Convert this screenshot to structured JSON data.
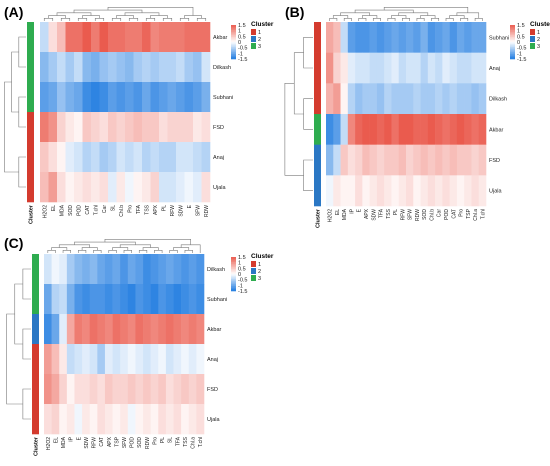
{
  "legend": {
    "title": "Cluster",
    "scale_labels": [
      "1.5",
      "1",
      "0.5",
      "0",
      "-0.5",
      "-1",
      "-1.5"
    ],
    "cluster_labels": [
      "1",
      "2",
      "3"
    ]
  },
  "colors": {
    "cluster_1": "#d43b2e",
    "cluster_2": "#2a77c4",
    "cluster_3": "#2eac4f",
    "low": "#1f7be0",
    "mid": "#ffffff",
    "high": "#ea5b4e",
    "dendrogram": "#7a7a7a"
  },
  "chart_data": [
    {
      "type": "heatmap",
      "panel_label": "(A)",
      "rows": [
        "Akbar",
        "Dilkash",
        "Subhani",
        "FSD",
        "Anaj",
        "Ujala"
      ],
      "row_clusters": [
        3,
        3,
        3,
        1,
        1,
        1
      ],
      "cluster_bar_label": "Cluster",
      "columns": [
        "H2O2",
        "EL",
        "MDA",
        "SOD",
        "POD",
        "CAT",
        "T.chl",
        "Car",
        "SL",
        "Chl.b",
        "Pro",
        "TFA",
        "TSS",
        "APX",
        "PL",
        "RFW",
        "SDW",
        "E",
        "SFW",
        "RDW"
      ],
      "values": [
        [
          -0.4,
          0.3,
          0.6,
          1.3,
          1.3,
          1.5,
          1.2,
          1.5,
          1.3,
          1.3,
          1.2,
          1.2,
          1.4,
          1.1,
          1.2,
          1.2,
          1.2,
          1.3,
          1.3,
          1.3
        ],
        [
          -0.8,
          -0.6,
          -0.4,
          -0.6,
          -0.4,
          -0.8,
          -0.9,
          -0.7,
          -0.6,
          -0.7,
          -0.8,
          -0.6,
          -0.5,
          -0.6,
          -0.5,
          -0.5,
          -0.4,
          -0.6,
          -0.7,
          -0.3
        ],
        [
          -1.1,
          -1.0,
          -0.7,
          -0.9,
          -1.0,
          -1.3,
          -1.4,
          -1.3,
          -1.1,
          -1.2,
          -1.1,
          -1.2,
          -1.0,
          -1.2,
          -1.1,
          -1.0,
          -1.1,
          -1.2,
          -1.1,
          -0.9
        ],
        [
          1.2,
          1.0,
          0.4,
          0.2,
          0.1,
          0.5,
          0.4,
          0.3,
          0.5,
          0.4,
          0.5,
          0.6,
          0.5,
          0.5,
          0.3,
          0.4,
          0.4,
          0.4,
          0.2,
          0.3
        ],
        [
          0.5,
          0.3,
          0.1,
          -0.2,
          -0.3,
          -0.5,
          -0.4,
          -0.6,
          -0.5,
          -0.3,
          -0.4,
          -0.3,
          -0.5,
          -0.4,
          -0.5,
          -0.5,
          -0.3,
          -0.3,
          -0.4,
          -0.5
        ],
        [
          0.6,
          0.9,
          0.3,
          0.1,
          0.2,
          0.3,
          0.2,
          0.3,
          -0.2,
          0.2,
          -0.1,
          0.1,
          0.2,
          0.4,
          -0.3,
          -0.3,
          -0.2,
          -0.1,
          -0.2,
          0.3
        ]
      ]
    },
    {
      "type": "heatmap",
      "panel_label": "(B)",
      "rows": [
        "Subhani",
        "Anaj",
        "Dilkash",
        "Akbar",
        "FSD",
        "Ujala"
      ],
      "row_clusters": [
        1,
        1,
        1,
        3,
        2,
        2
      ],
      "cluster_bar_label": "Cluster",
      "columns": [
        "H2O2",
        "EL",
        "MDA",
        "IP",
        "E",
        "APX",
        "SDW",
        "TFA",
        "TSS",
        "PL",
        "RFW",
        "SFW",
        "RDW",
        "SOD",
        "Chl.b",
        "Car",
        "POD",
        "CAT",
        "Pro",
        "TSP",
        "Chl.a",
        "T.chl"
      ],
      "values": [
        [
          0.8,
          0.6,
          -0.4,
          -1.1,
          -1.2,
          -1.2,
          -1.1,
          -1.2,
          -1.1,
          -1.0,
          -1.1,
          -1.0,
          -1.1,
          -0.9,
          -1.2,
          -1.1,
          -1.0,
          -1.2,
          -1.0,
          -1.1,
          -1.0,
          -1.0
        ],
        [
          1.0,
          0.4,
          0.2,
          -0.2,
          -0.3,
          -0.3,
          -0.4,
          -0.4,
          -0.3,
          -0.2,
          -0.4,
          -0.3,
          -0.3,
          -0.5,
          -0.3,
          -0.4,
          -0.2,
          -0.3,
          -0.4,
          -0.4,
          -0.3,
          -0.3
        ],
        [
          0.7,
          0.9,
          0.1,
          -0.5,
          -0.7,
          -0.6,
          -0.6,
          -0.7,
          -0.5,
          -0.6,
          -0.6,
          -0.6,
          -0.5,
          -0.6,
          -0.6,
          -0.5,
          -0.6,
          -0.5,
          -0.6,
          -0.6,
          -0.7,
          -0.6
        ],
        [
          -1.3,
          -1.1,
          -0.4,
          1.1,
          1.4,
          1.5,
          1.5,
          1.4,
          1.5,
          1.3,
          1.5,
          1.5,
          1.4,
          1.4,
          1.5,
          1.4,
          1.3,
          1.4,
          1.5,
          1.4,
          1.3,
          1.4
        ],
        [
          -0.8,
          -0.4,
          0.5,
          0.3,
          0.4,
          0.6,
          0.5,
          0.4,
          0.5,
          0.5,
          0.6,
          0.4,
          0.5,
          0.6,
          0.5,
          0.6,
          0.5,
          0.6,
          0.5,
          0.5,
          0.4,
          0.5
        ],
        [
          -0.1,
          0.2,
          0.1,
          0.1,
          0.3,
          0.1,
          0.2,
          0.3,
          0.2,
          0.1,
          0.2,
          0.3,
          0.1,
          0.2,
          0.3,
          0.2,
          0.3,
          0.2,
          0.1,
          0.2,
          0.3,
          0.2
        ]
      ]
    },
    {
      "type": "heatmap",
      "panel_label": "(C)",
      "rows": [
        "Dilkash",
        "Subhani",
        "Akbar",
        "Anaj",
        "FSD",
        "Ujala"
      ],
      "row_clusters": [
        3,
        3,
        2,
        1,
        1,
        1
      ],
      "cluster_bar_label": "Cluster",
      "columns": [
        "H2O2",
        "EL",
        "MDA",
        "IP",
        "E",
        "SDW",
        "RFW",
        "CAT",
        "APX",
        "TSP",
        "SFW",
        "POD",
        "SOD",
        "RDW",
        "Pro",
        "PL",
        "SL",
        "TFA",
        "TSS",
        "Chl.a",
        "T.chl"
      ],
      "values": [
        [
          -0.3,
          -0.1,
          -0.2,
          -0.6,
          -0.8,
          -0.9,
          -0.8,
          -1.0,
          -1.1,
          -1.0,
          -1.2,
          -1.0,
          -1.1,
          -1.3,
          -1.2,
          -1.1,
          -1.0,
          -1.1,
          -1.2,
          -1.1,
          -1.2
        ],
        [
          -1.0,
          -0.5,
          -0.4,
          -0.9,
          -1.2,
          -1.3,
          -1.2,
          -1.2,
          -1.3,
          -1.2,
          -1.3,
          -1.4,
          -1.2,
          -1.3,
          -1.4,
          -1.2,
          -1.3,
          -1.4,
          -1.3,
          -1.2,
          -1.3
        ],
        [
          -1.3,
          -1.0,
          -0.2,
          0.8,
          1.2,
          1.1,
          1.3,
          1.2,
          1.1,
          1.3,
          1.2,
          1.1,
          1.3,
          1.2,
          1.1,
          1.2,
          1.3,
          1.2,
          1.1,
          1.2,
          1.1
        ],
        [
          0.9,
          0.6,
          0.2,
          -0.4,
          -0.3,
          -0.2,
          -0.3,
          -0.6,
          -0.2,
          -0.3,
          -0.2,
          -0.1,
          -0.2,
          -0.3,
          -0.2,
          -0.1,
          -0.3,
          -0.2,
          -0.1,
          -0.2,
          -0.1
        ],
        [
          1.0,
          0.8,
          0.4,
          0.1,
          0.3,
          0.3,
          0.4,
          0.3,
          0.5,
          0.4,
          0.4,
          0.5,
          0.4,
          0.5,
          0.4,
          0.5,
          0.3,
          0.4,
          0.5,
          0.4,
          0.5
        ],
        [
          0.3,
          0.4,
          0.1,
          0.2,
          -0.1,
          0.2,
          0.1,
          0.3,
          0.2,
          0.1,
          0.2,
          -0.1,
          0.1,
          0.2,
          0.1,
          0.3,
          0.2,
          0.3,
          0.1,
          0.2,
          0.3
        ]
      ]
    }
  ]
}
